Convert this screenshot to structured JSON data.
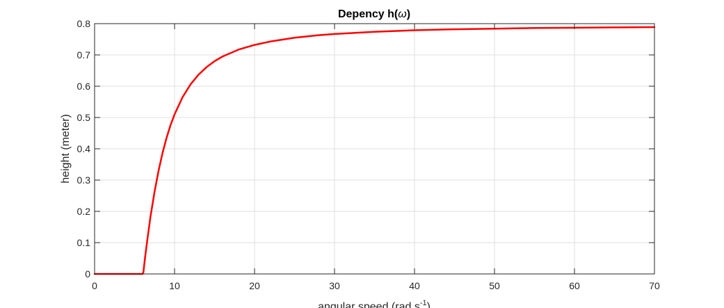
{
  "chart_data": {
    "type": "line",
    "title": "Depency h(",
    "title_symbol": "ω",
    "title_suffix": ")",
    "xlabel": "angular speed (rad s",
    "xlabel_superscript": "-1",
    "xlabel_suffix": ")",
    "ylabel": "height (meter)",
    "xlim": [
      0,
      70
    ],
    "ylim": [
      0,
      0.8
    ],
    "xticks": [
      "0",
      "10",
      "20",
      "30",
      "40",
      "50",
      "60",
      "70"
    ],
    "yticks": [
      "0",
      "0.1",
      "0.2",
      "0.3",
      "0.4",
      "0.5",
      "0.6",
      "0.7",
      "0.8"
    ],
    "grid": true,
    "line_color": "#ff0000",
    "series": [
      {
        "x": [
          0,
          1,
          2,
          3,
          4,
          5,
          6,
          6.1,
          6.3,
          6.6,
          7,
          7.5,
          8,
          8.5,
          9,
          9.5,
          10,
          11,
          12,
          13,
          14,
          15,
          16,
          18,
          20,
          22,
          25,
          28,
          30,
          35,
          40,
          45,
          50,
          55,
          60,
          65,
          70
        ],
        "y": [
          0,
          0,
          0,
          0,
          0,
          0,
          0,
          0.005,
          0.05,
          0.11,
          0.185,
          0.263,
          0.33,
          0.387,
          0.435,
          0.476,
          0.51,
          0.565,
          0.606,
          0.637,
          0.661,
          0.68,
          0.695,
          0.717,
          0.732,
          0.743,
          0.755,
          0.763,
          0.767,
          0.774,
          0.779,
          0.782,
          0.784,
          0.786,
          0.787,
          0.788,
          0.789
        ]
      }
    ]
  }
}
